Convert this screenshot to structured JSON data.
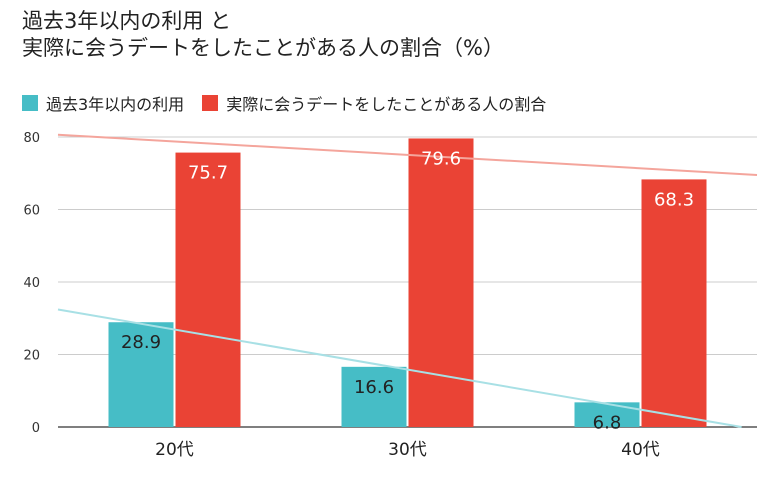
{
  "title": {
    "line1": "過去3年以内の利用 と",
    "line2": "実際に会うデートをしたことがある人の割合（%）"
  },
  "legend": [
    {
      "label": "過去3年以内の利用",
      "color": "#46bdc6"
    },
    {
      "label": "実際に会うデートをしたことがある人の割合",
      "color": "#ea4335"
    }
  ],
  "chart_data": {
    "type": "bar",
    "title": "過去3年以内の利用 と 実際に会うデートをしたことがある人の割合（%）",
    "categories": [
      "20代",
      "30代",
      "40代"
    ],
    "series": [
      {
        "name": "過去3年以内の利用",
        "values": [
          28.9,
          16.6,
          6.8
        ],
        "color": "#46bdc6",
        "labels": [
          "28.9",
          "16.6",
          "6.8"
        ],
        "trendline_color": "#a8e0e5"
      },
      {
        "name": "実際に会うデートをしたことがある人の割合",
        "values": [
          75.7,
          79.6,
          68.3
        ],
        "color": "#ea4335",
        "labels": [
          "75.7",
          "79.6",
          "68.3"
        ],
        "trendline_color": "#f4a59c"
      }
    ],
    "ylim": [
      0,
      80
    ],
    "yticks": [
      0,
      20,
      40,
      60,
      80
    ],
    "grid": true,
    "legend_position": "top-left",
    "trendlines": true
  }
}
